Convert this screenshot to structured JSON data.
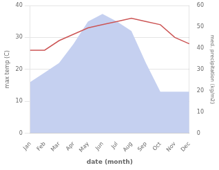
{
  "chart_data": {
    "type": "line",
    "categories": [
      "Jan",
      "Feb",
      "Mar",
      "Apr",
      "May",
      "Jun",
      "Jul",
      "Aug",
      "Sep",
      "Oct",
      "Nov",
      "Dec"
    ],
    "series": [
      {
        "type": "area",
        "color": "#c5d0f0",
        "axis": "y2",
        "values": [
          24,
          28.5,
          33,
          42,
          52.5,
          56,
          52.5,
          48,
          33,
          19.5,
          19.5,
          19.5
        ]
      },
      {
        "type": "line",
        "color": "#cc5555",
        "values": [
          26,
          26,
          29,
          31,
          33,
          34,
          35,
          36,
          35,
          34,
          30,
          28
        ]
      }
    ],
    "xlabel": "date (month)",
    "ylabel": "max temp (C)",
    "y2label": "med. precipitation (kg/m2)",
    "ylim": [
      0,
      40
    ],
    "yticks": [
      0,
      10,
      20,
      30,
      40
    ],
    "y2lim": [
      0,
      60
    ],
    "y2ticks": [
      0,
      10,
      20,
      30,
      40,
      50,
      60
    ],
    "grid": true
  }
}
